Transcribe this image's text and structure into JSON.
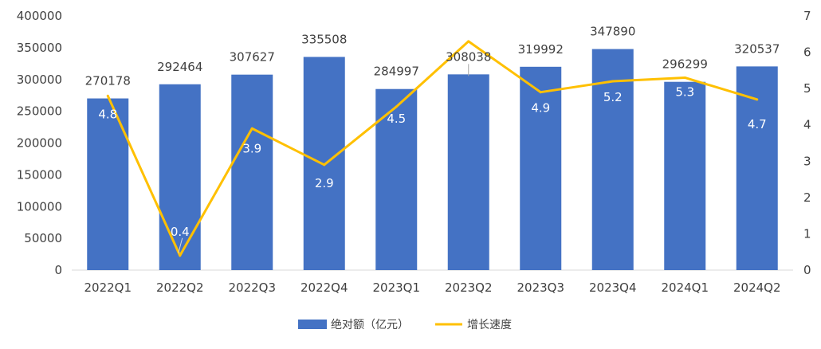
{
  "chart_data": {
    "type": "bar",
    "categories": [
      "2022Q1",
      "2022Q2",
      "2022Q3",
      "2022Q4",
      "2023Q1",
      "2023Q2",
      "2023Q3",
      "2023Q4",
      "2024Q1",
      "2024Q2"
    ],
    "series": [
      {
        "name": "绝对额（亿元）",
        "type": "bar",
        "axis": "left",
        "color": "#4472C4",
        "values": [
          270178,
          292464,
          307627,
          335508,
          284997,
          308038,
          319992,
          347890,
          296299,
          320537
        ]
      },
      {
        "name": "增长速度",
        "type": "line",
        "axis": "right",
        "color": "#FFC000",
        "values": [
          4.8,
          0.4,
          3.9,
          2.9,
          4.5,
          6.3,
          4.9,
          5.2,
          5.3,
          4.7
        ]
      }
    ],
    "y_left": {
      "min": 0,
      "max": 400000,
      "ticks": [
        0,
        50000,
        100000,
        150000,
        200000,
        250000,
        300000,
        350000,
        400000
      ]
    },
    "y_right": {
      "min": 0,
      "max": 7,
      "ticks": [
        0,
        1,
        2,
        3,
        4,
        5,
        6,
        7
      ]
    },
    "rate_labels": [
      "4.8",
      "0.4",
      "3.9",
      "2.9",
      "4.5",
      "",
      "4.9",
      "5.2",
      "5.3",
      "4.7"
    ],
    "title": "",
    "grid": false,
    "legend_position": "bottom"
  }
}
